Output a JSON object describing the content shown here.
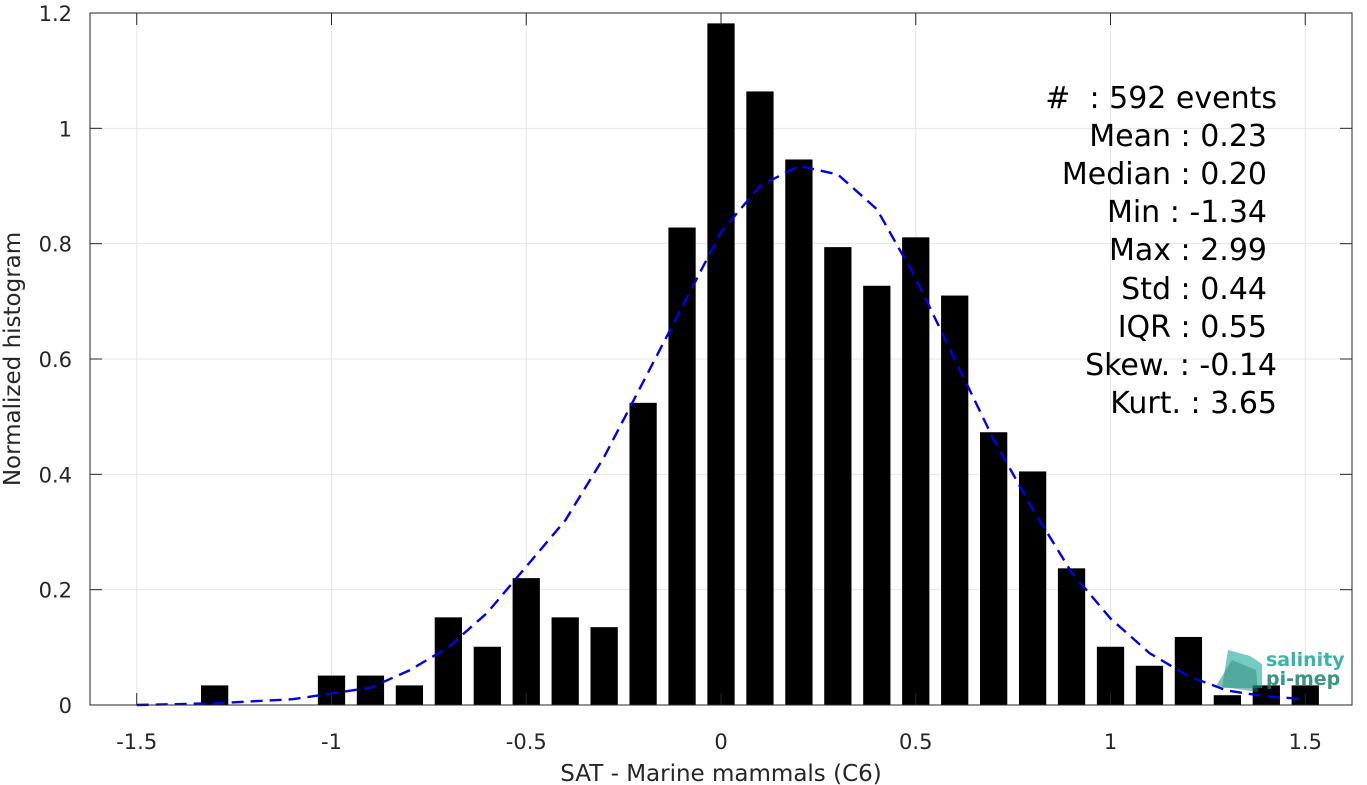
{
  "chart_data": {
    "type": "bar",
    "xlabel": "SAT - Marine mammals (C6)",
    "ylabel": "Normalized histogram",
    "xlim": [
      -1.62,
      1.62
    ],
    "ylim": [
      0,
      1.2
    ],
    "xticks": [
      -1.5,
      -1,
      -0.5,
      0,
      0.5,
      1,
      1.5
    ],
    "xtick_labels": [
      "-1.5",
      "-1",
      "-0.5",
      "0",
      "0.5",
      "1",
      "1.5"
    ],
    "yticks": [
      0,
      0.2,
      0.4,
      0.6,
      0.8,
      1,
      1.2
    ],
    "ytick_labels": [
      "0",
      "0.2",
      "0.4",
      "0.6",
      "0.8",
      "1",
      "1.2"
    ],
    "grid": true,
    "bar_width": 0.07,
    "series": [
      {
        "style": "bar",
        "color": "#000000",
        "x": [
          -1.3,
          -1.0,
          -0.9,
          -0.8,
          -0.7,
          -0.6,
          -0.5,
          -0.4,
          -0.3,
          -0.2,
          -0.1,
          0.0,
          0.1,
          0.2,
          0.3,
          0.4,
          0.5,
          0.6,
          0.7,
          0.8,
          0.9,
          1.0,
          1.1,
          1.2,
          1.3,
          1.4,
          1.5
        ],
        "values": [
          0.034,
          0.051,
          0.051,
          0.034,
          0.152,
          0.101,
          0.22,
          0.152,
          0.135,
          0.524,
          0.828,
          1.182,
          1.064,
          0.946,
          0.794,
          0.727,
          0.811,
          0.71,
          0.473,
          0.405,
          0.237,
          0.101,
          0.068,
          0.118,
          0.017,
          0.034,
          0.034
        ]
      },
      {
        "style": "dashed-line",
        "color": "#0000e6",
        "x": [
          -1.5,
          -1.3,
          -1.1,
          -1.0,
          -0.9,
          -0.8,
          -0.7,
          -0.6,
          -0.5,
          -0.4,
          -0.3,
          -0.2,
          -0.1,
          0.0,
          0.1,
          0.2,
          0.3,
          0.4,
          0.5,
          0.6,
          0.7,
          0.8,
          0.9,
          1.0,
          1.1,
          1.2,
          1.3,
          1.4,
          1.5
        ],
        "values": [
          0.0,
          0.003,
          0.01,
          0.02,
          0.03,
          0.06,
          0.1,
          0.16,
          0.24,
          0.32,
          0.43,
          0.56,
          0.69,
          0.82,
          0.9,
          0.935,
          0.92,
          0.86,
          0.74,
          0.6,
          0.46,
          0.34,
          0.23,
          0.15,
          0.09,
          0.05,
          0.025,
          0.015,
          0.01
        ]
      }
    ]
  },
  "stats": [
    "#  : 592 events",
    "Mean : 0.23",
    "Median : 0.20",
    "Min : -1.34",
    "Max : 2.99",
    "Std : 0.44",
    "IQR : 0.55",
    "Skew. : -0.14",
    "Kurt. : 3.65"
  ],
  "logo": {
    "line1": "salinity",
    "line2": "pi-mep",
    "colors": [
      "#1aa69a",
      "#17826f"
    ]
  }
}
